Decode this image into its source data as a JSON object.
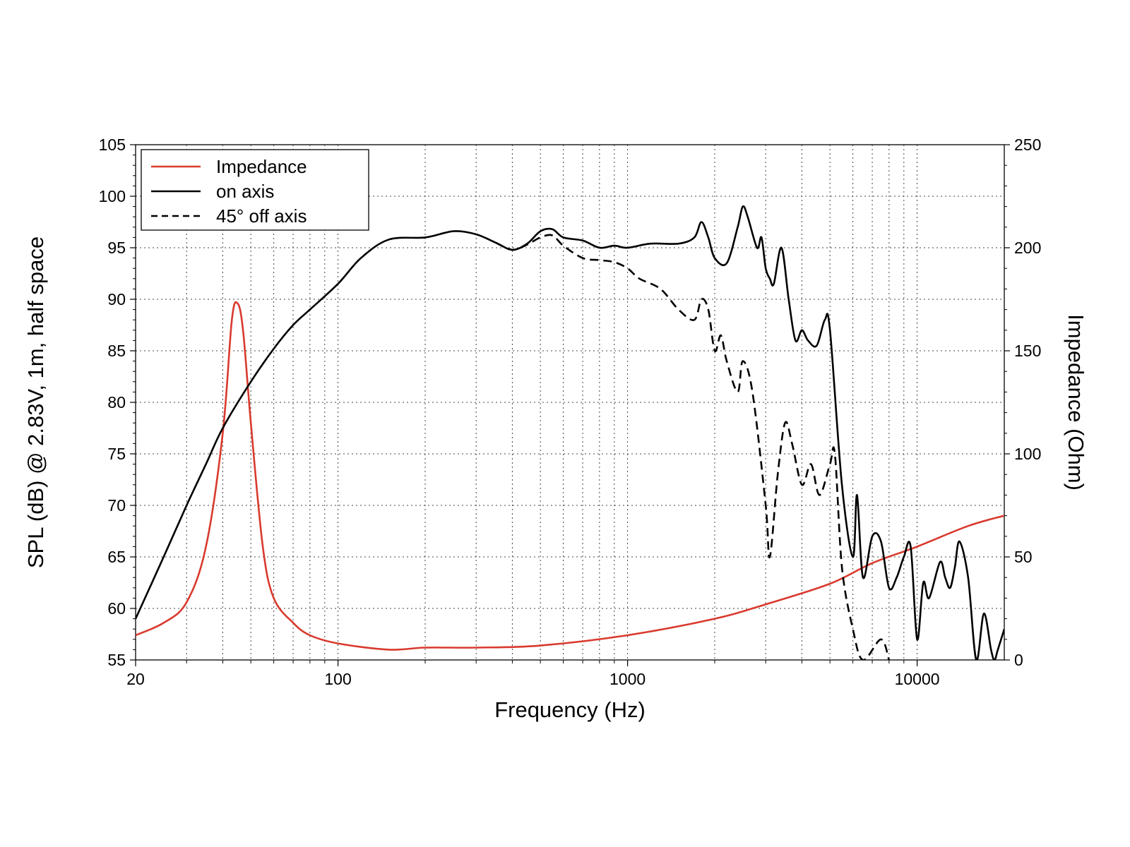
{
  "chart_data": {
    "type": "line",
    "xlabel": "Frequency (Hz)",
    "ylabel": "SPL (dB) @ 2.83V, 1m, half space",
    "y2label": "Impedance (Ohm)",
    "xscale": "log",
    "xlim": [
      20,
      20000
    ],
    "ylim": [
      55,
      105
    ],
    "y2lim": [
      0,
      250
    ],
    "x_ticks": [
      20,
      100,
      1000,
      10000
    ],
    "x_tick_labels": [
      "20",
      "100",
      "1000",
      "10000"
    ],
    "y_ticks": [
      55,
      60,
      65,
      70,
      75,
      80,
      85,
      90,
      95,
      100,
      105
    ],
    "y_tick_labels": [
      "55",
      "60",
      "65",
      "70",
      "75",
      "80",
      "85",
      "90",
      "95",
      "100",
      "105"
    ],
    "y2_ticks": [
      0,
      50,
      100,
      150,
      200,
      250
    ],
    "y2_tick_labels": [
      "0",
      "50",
      "100",
      "150",
      "200",
      "250"
    ],
    "grid": true,
    "legend_position": "top-left",
    "series": [
      {
        "name": "Impedance",
        "axis": "right",
        "color": "#d93a2e",
        "style": "solid",
        "points": [
          [
            20,
            12
          ],
          [
            25,
            18
          ],
          [
            30,
            28
          ],
          [
            35,
            55
          ],
          [
            40,
            110
          ],
          [
            43,
            165
          ],
          [
            45,
            173
          ],
          [
            47,
            160
          ],
          [
            50,
            115
          ],
          [
            55,
            55
          ],
          [
            60,
            30
          ],
          [
            70,
            18
          ],
          [
            80,
            12
          ],
          [
            100,
            8
          ],
          [
            150,
            5
          ],
          [
            200,
            6
          ],
          [
            300,
            6
          ],
          [
            500,
            7
          ],
          [
            1000,
            12
          ],
          [
            2000,
            20
          ],
          [
            3000,
            27
          ],
          [
            5000,
            37
          ],
          [
            7000,
            47
          ],
          [
            10000,
            55
          ],
          [
            15000,
            65
          ],
          [
            20000,
            70
          ]
        ]
      },
      {
        "name": "on axis",
        "axis": "left",
        "color": "#000000",
        "style": "solid",
        "points": [
          [
            20,
            59
          ],
          [
            25,
            65
          ],
          [
            30,
            70
          ],
          [
            35,
            74
          ],
          [
            40,
            77.5
          ],
          [
            50,
            82
          ],
          [
            60,
            85.2
          ],
          [
            70,
            87.5
          ],
          [
            80,
            89
          ],
          [
            100,
            91.5
          ],
          [
            120,
            94
          ],
          [
            150,
            95.8
          ],
          [
            200,
            96
          ],
          [
            250,
            96.6
          ],
          [
            300,
            96.3
          ],
          [
            350,
            95.5
          ],
          [
            400,
            94.8
          ],
          [
            450,
            95.4
          ],
          [
            500,
            96.6
          ],
          [
            550,
            96.8
          ],
          [
            600,
            96
          ],
          [
            700,
            95.7
          ],
          [
            800,
            95
          ],
          [
            900,
            95.2
          ],
          [
            1000,
            95
          ],
          [
            1200,
            95.4
          ],
          [
            1500,
            95.4
          ],
          [
            1700,
            96
          ],
          [
            1800,
            97.5
          ],
          [
            1900,
            96
          ],
          [
            2000,
            94
          ],
          [
            2200,
            93.5
          ],
          [
            2400,
            97
          ],
          [
            2500,
            99
          ],
          [
            2600,
            98
          ],
          [
            2800,
            95
          ],
          [
            2900,
            96
          ],
          [
            3000,
            93
          ],
          [
            3100,
            92
          ],
          [
            3200,
            91.5
          ],
          [
            3400,
            95
          ],
          [
            3600,
            90
          ],
          [
            3800,
            86
          ],
          [
            4000,
            87
          ],
          [
            4200,
            86
          ],
          [
            4500,
            85.5
          ],
          [
            4800,
            88
          ],
          [
            5000,
            87
          ],
          [
            5500,
            72
          ],
          [
            6000,
            65
          ],
          [
            6200,
            71
          ],
          [
            6500,
            63
          ],
          [
            7000,
            67
          ],
          [
            7500,
            66.5
          ],
          [
            8000,
            62
          ],
          [
            8500,
            63
          ],
          [
            9000,
            65
          ],
          [
            9500,
            66
          ],
          [
            10000,
            57
          ],
          [
            10500,
            62.5
          ],
          [
            11000,
            61
          ],
          [
            12000,
            64.5
          ],
          [
            12500,
            63
          ],
          [
            13000,
            62
          ],
          [
            13500,
            64
          ],
          [
            14000,
            66.5
          ],
          [
            15000,
            63
          ],
          [
            16000,
            55
          ],
          [
            17000,
            59.5
          ],
          [
            18000,
            56
          ],
          [
            18500,
            55
          ],
          [
            19000,
            56
          ],
          [
            20000,
            58
          ]
        ]
      },
      {
        "name": "45° off axis",
        "axis": "left",
        "color": "#000000",
        "style": "dashed",
        "points": [
          [
            350,
            95.5
          ],
          [
            400,
            94.8
          ],
          [
            450,
            95.3
          ],
          [
            500,
            96
          ],
          [
            550,
            96.2
          ],
          [
            600,
            95.2
          ],
          [
            700,
            94
          ],
          [
            800,
            93.8
          ],
          [
            900,
            93.6
          ],
          [
            1000,
            93
          ],
          [
            1100,
            92
          ],
          [
            1300,
            91
          ],
          [
            1500,
            89
          ],
          [
            1700,
            88
          ],
          [
            1800,
            90
          ],
          [
            1900,
            89
          ],
          [
            2000,
            85
          ],
          [
            2100,
            86.5
          ],
          [
            2200,
            84
          ],
          [
            2400,
            81
          ],
          [
            2500,
            84
          ],
          [
            2700,
            81
          ],
          [
            3000,
            70
          ],
          [
            3100,
            65
          ],
          [
            3300,
            73
          ],
          [
            3500,
            78
          ],
          [
            3700,
            76
          ],
          [
            4000,
            72
          ],
          [
            4300,
            74
          ],
          [
            4600,
            71
          ],
          [
            5000,
            74
          ],
          [
            5200,
            75
          ],
          [
            5500,
            64
          ],
          [
            6000,
            58
          ],
          [
            6500,
            55
          ],
          [
            7500,
            57
          ],
          [
            8000,
            55
          ]
        ]
      }
    ]
  }
}
